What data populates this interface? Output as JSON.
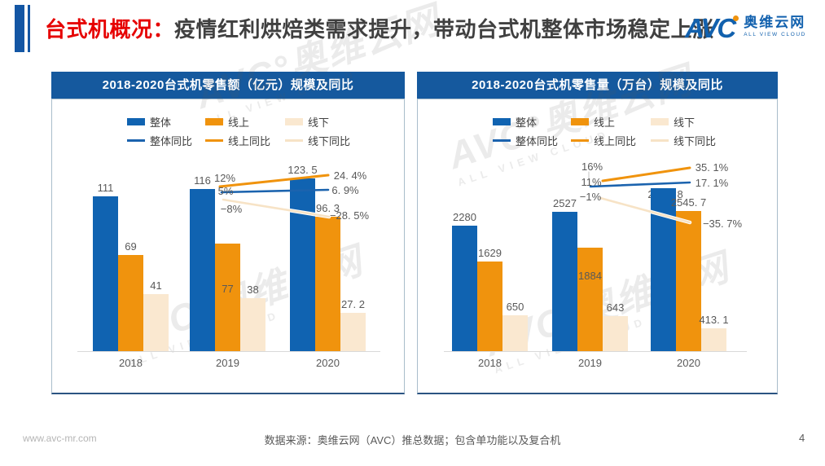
{
  "title": {
    "section": "台式机概况：",
    "main": "疫情红利烘焙类需求提升，带动台式机整体市场稳定上涨"
  },
  "logo": {
    "avc": "AVC",
    "name": "奥维云网",
    "tagline": "ALL VIEW CLOUD"
  },
  "watermark": {
    "main": "AVC°奥维云网",
    "sub": "ALL VIEW CLOUD"
  },
  "colors": {
    "bar_overall": "#1063B1",
    "bar_online": "#F0930D",
    "bar_offline": "#FAE8D0",
    "line_overall": "#1B63AE",
    "line_online": "#F0930D",
    "line_offline": "#F7E3C6",
    "header_blue": "#15599E",
    "title_red": "#E60000",
    "label_gray": "#595959",
    "axis_gray": "#D9D9D9"
  },
  "legend": {
    "items": [
      {
        "label": "整体",
        "type": "bar",
        "color": "#1063B1"
      },
      {
        "label": "线上",
        "type": "bar",
        "color": "#F0930D"
      },
      {
        "label": "线下",
        "type": "bar",
        "color": "#FAE8D0"
      },
      {
        "label": "整体同比",
        "type": "line",
        "color": "#1B63AE"
      },
      {
        "label": "线上同比",
        "type": "line",
        "color": "#F0930D"
      },
      {
        "label": "线下同比",
        "type": "line",
        "color": "#F7E3C6"
      }
    ]
  },
  "chart_data": [
    {
      "type": "bar",
      "title": "2018-2020台式机零售额（亿元）规模及同比",
      "categories": [
        "2018",
        "2019",
        "2020"
      ],
      "series": [
        {
          "name": "整体",
          "type": "bar",
          "values": [
            111,
            116,
            123.5
          ],
          "labels": [
            "111",
            "116",
            "123. 5"
          ]
        },
        {
          "name": "线上",
          "type": "bar",
          "values": [
            69,
            77,
            96.3
          ],
          "labels": [
            "69",
            "77",
            "96. 3"
          ]
        },
        {
          "name": "线下",
          "type": "bar",
          "values": [
            41,
            38,
            27.2
          ],
          "labels": [
            "41",
            "38",
            "27. 2"
          ]
        },
        {
          "name": "整体同比",
          "type": "line",
          "values": [
            null,
            5,
            6.9
          ],
          "labels": [
            null,
            "5%",
            "6. 9%"
          ]
        },
        {
          "name": "线上同比",
          "type": "line",
          "values": [
            null,
            12,
            24.4
          ],
          "labels": [
            null,
            "12%",
            "24. 4%"
          ]
        },
        {
          "name": "线下同比",
          "type": "line",
          "values": [
            null,
            -8,
            -28.5
          ],
          "labels": [
            null,
            "−8%",
            "−28. 5%"
          ]
        }
      ],
      "ylim": [
        0,
        140
      ],
      "legend_position": "top",
      "grid": false,
      "y_axis_visible": false
    },
    {
      "type": "bar",
      "title": "2018-2020台式机零售量（万台）规模及同比",
      "categories": [
        "2018",
        "2019",
        "2020"
      ],
      "series": [
        {
          "name": "整体",
          "type": "bar",
          "values": [
            2280,
            2527,
            2958.8
          ],
          "labels": [
            "2280",
            "2527",
            "2958. 8"
          ]
        },
        {
          "name": "线上",
          "type": "bar",
          "values": [
            1629,
            1884,
            2545.7
          ],
          "labels": [
            "1629",
            "1884",
            "2545. 7"
          ]
        },
        {
          "name": "线下",
          "type": "bar",
          "values": [
            650,
            643,
            413.1
          ],
          "labels": [
            "650",
            "643",
            "413. 1"
          ]
        },
        {
          "name": "整体同比",
          "type": "line",
          "values": [
            null,
            11,
            17.1
          ],
          "labels": [
            null,
            "11%",
            "17. 1%"
          ]
        },
        {
          "name": "线上同比",
          "type": "line",
          "values": [
            null,
            16,
            35.1
          ],
          "labels": [
            null,
            "16%",
            "35. 1%"
          ]
        },
        {
          "name": "线下同比",
          "type": "line",
          "values": [
            null,
            -1,
            -35.7
          ],
          "labels": [
            null,
            "−1%",
            "−35. 7%"
          ]
        }
      ],
      "ylim": [
        0,
        3300
      ],
      "legend_position": "top",
      "grid": false,
      "y_axis_visible": false
    }
  ],
  "footer": {
    "site": "www.avc-mr.com",
    "source": "数据来源：奥维云网（AVC）推总数据；包含单功能以及复合机",
    "page": "4"
  }
}
